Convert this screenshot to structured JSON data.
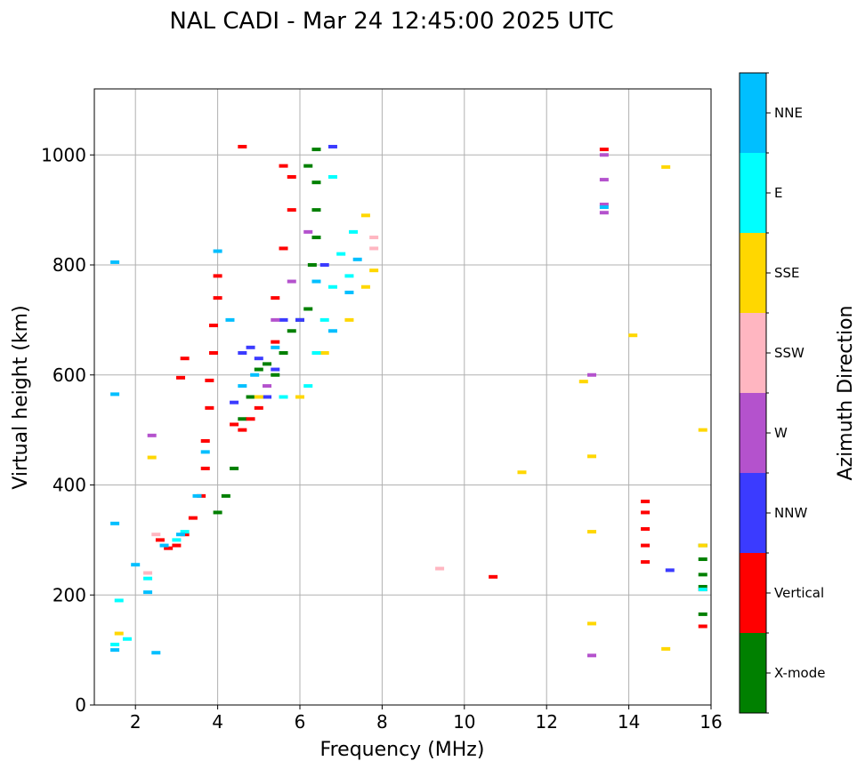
{
  "chart_data": {
    "type": "scatter",
    "title": "NAL CADI - Mar 24 12:45:00 2025 UTC",
    "xlabel": "Frequency (MHz)",
    "ylabel": "Virtual height (km)",
    "xlim": [
      1,
      16
    ],
    "ylim": [
      0,
      1120
    ],
    "xticks": [
      2,
      4,
      6,
      8,
      10,
      12,
      14,
      16
    ],
    "yticks": [
      0,
      200,
      400,
      600,
      800,
      1000
    ],
    "grid": true,
    "colorbar": {
      "label": "Azimuth Direction",
      "categories": [
        "X-mode",
        "Vertical",
        "NNW",
        "W",
        "SSW",
        "SSE",
        "E",
        "NNE"
      ],
      "colors": [
        "#008000",
        "#ff0000",
        "#3b3bff",
        "#b452cd",
        "#ffb6c1",
        "#ffd700",
        "#00ffff",
        "#00bfff"
      ]
    },
    "series": [
      {
        "name": "X-mode",
        "points": [
          [
            4.0,
            350
          ],
          [
            4.2,
            380
          ],
          [
            4.4,
            430
          ],
          [
            4.6,
            520
          ],
          [
            4.8,
            560
          ],
          [
            5.0,
            610
          ],
          [
            5.2,
            620
          ],
          [
            5.4,
            600
          ],
          [
            5.6,
            640
          ],
          [
            5.8,
            680
          ],
          [
            6.0,
            700
          ],
          [
            6.2,
            720
          ],
          [
            6.3,
            800
          ],
          [
            6.4,
            850
          ],
          [
            6.4,
            900
          ],
          [
            6.4,
            950
          ],
          [
            6.2,
            980
          ],
          [
            6.4,
            1010
          ],
          [
            15.8,
            165
          ],
          [
            15.8,
            215
          ],
          [
            15.8,
            237
          ],
          [
            15.8,
            265
          ],
          [
            15.8,
            290
          ]
        ]
      },
      {
        "name": "Vertical",
        "points": [
          [
            2.6,
            300
          ],
          [
            2.8,
            285
          ],
          [
            3.0,
            290
          ],
          [
            3.2,
            310
          ],
          [
            3.4,
            340
          ],
          [
            3.6,
            380
          ],
          [
            3.7,
            430
          ],
          [
            3.7,
            480
          ],
          [
            3.8,
            540
          ],
          [
            3.8,
            590
          ],
          [
            3.9,
            640
          ],
          [
            3.9,
            690
          ],
          [
            4.0,
            740
          ],
          [
            4.0,
            780
          ],
          [
            4.4,
            510
          ],
          [
            4.6,
            500
          ],
          [
            4.8,
            520
          ],
          [
            5.0,
            540
          ],
          [
            5.2,
            560
          ],
          [
            5.4,
            660
          ],
          [
            5.4,
            740
          ],
          [
            5.6,
            830
          ],
          [
            5.8,
            900
          ],
          [
            5.8,
            960
          ],
          [
            3.1,
            595
          ],
          [
            3.2,
            630
          ],
          [
            4.6,
            1015
          ],
          [
            5.6,
            980
          ],
          [
            10.7,
            233
          ],
          [
            13.4,
            1010
          ],
          [
            14.4,
            260
          ],
          [
            14.4,
            290
          ],
          [
            14.4,
            320
          ],
          [
            14.4,
            350
          ],
          [
            14.4,
            370
          ],
          [
            15.8,
            143
          ],
          [
            15.8,
            210
          ]
        ]
      },
      {
        "name": "NNW",
        "points": [
          [
            4.6,
            640
          ],
          [
            4.8,
            650
          ],
          [
            5.0,
            630
          ],
          [
            5.2,
            560
          ],
          [
            5.4,
            610
          ],
          [
            5.6,
            700
          ],
          [
            4.4,
            550
          ],
          [
            6.0,
            700
          ],
          [
            6.6,
            800
          ],
          [
            6.8,
            1015
          ],
          [
            15.0,
            245
          ]
        ]
      },
      {
        "name": "W",
        "points": [
          [
            2.4,
            490
          ],
          [
            5.2,
            580
          ],
          [
            5.4,
            700
          ],
          [
            5.8,
            770
          ],
          [
            6.2,
            860
          ],
          [
            13.4,
            910
          ],
          [
            13.4,
            955
          ],
          [
            13.4,
            1000
          ],
          [
            13.1,
            600
          ],
          [
            13.1,
            90
          ],
          [
            13.4,
            895
          ]
        ]
      },
      {
        "name": "SSW",
        "points": [
          [
            2.3,
            240
          ],
          [
            2.5,
            310
          ],
          [
            5.6,
            560
          ],
          [
            7.8,
            850
          ],
          [
            7.8,
            830
          ],
          [
            9.4,
            248
          ]
        ]
      },
      {
        "name": "SSE",
        "points": [
          [
            1.6,
            130
          ],
          [
            2.4,
            450
          ],
          [
            5.0,
            560
          ],
          [
            6.0,
            560
          ],
          [
            6.6,
            640
          ],
          [
            7.2,
            700
          ],
          [
            7.6,
            760
          ],
          [
            7.8,
            790
          ],
          [
            7.6,
            890
          ],
          [
            11.4,
            423
          ],
          [
            12.9,
            588
          ],
          [
            13.1,
            452
          ],
          [
            13.1,
            315
          ],
          [
            13.1,
            148
          ],
          [
            14.1,
            672
          ],
          [
            14.9,
            978
          ],
          [
            14.9,
            102
          ],
          [
            15.8,
            500
          ],
          [
            15.8,
            290
          ]
        ]
      },
      {
        "name": "E",
        "points": [
          [
            1.5,
            110
          ],
          [
            1.6,
            190
          ],
          [
            1.8,
            120
          ],
          [
            2.3,
            230
          ],
          [
            3.0,
            300
          ],
          [
            3.2,
            315
          ],
          [
            5.6,
            560
          ],
          [
            6.2,
            580
          ],
          [
            6.4,
            640
          ],
          [
            6.6,
            700
          ],
          [
            6.8,
            760
          ],
          [
            7.0,
            820
          ],
          [
            7.2,
            780
          ],
          [
            7.3,
            860
          ],
          [
            6.8,
            960
          ],
          [
            15.8,
            210
          ]
        ]
      },
      {
        "name": "NNE",
        "points": [
          [
            1.5,
            100
          ],
          [
            1.5,
            330
          ],
          [
            1.5,
            565
          ],
          [
            1.5,
            805
          ],
          [
            2.0,
            255
          ],
          [
            2.3,
            205
          ],
          [
            2.5,
            95
          ],
          [
            2.7,
            290
          ],
          [
            3.1,
            310
          ],
          [
            3.5,
            380
          ],
          [
            3.7,
            460
          ],
          [
            4.0,
            825
          ],
          [
            4.3,
            700
          ],
          [
            4.6,
            580
          ],
          [
            4.9,
            600
          ],
          [
            5.4,
            650
          ],
          [
            6.4,
            770
          ],
          [
            6.8,
            680
          ],
          [
            7.2,
            750
          ],
          [
            7.4,
            810
          ],
          [
            13.4,
            905
          ]
        ]
      }
    ]
  }
}
